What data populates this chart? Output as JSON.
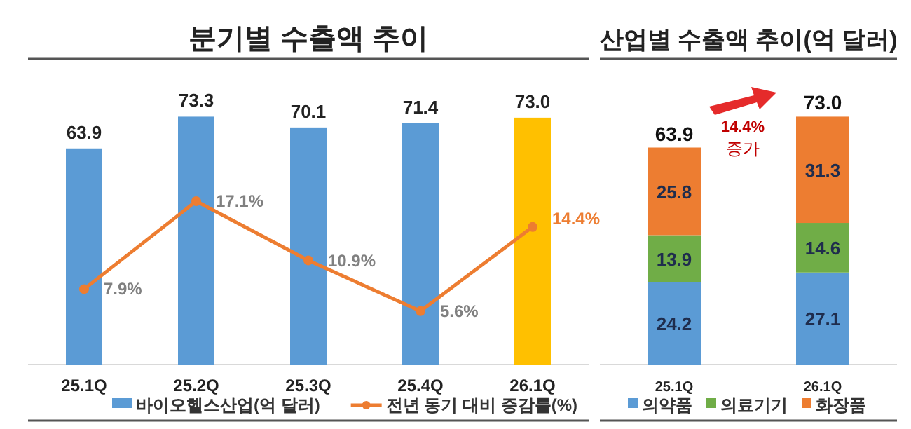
{
  "chart_data": [
    {
      "type": "bar",
      "title": "분기별 수출액 추이",
      "categories": [
        "25.1Q",
        "25.2Q",
        "25.3Q",
        "25.4Q",
        "26.1Q"
      ],
      "series": [
        {
          "name": "바이오헬스산업(억 달러)",
          "color": "#5b9bd5",
          "colors": [
            "#5b9bd5",
            "#5b9bd5",
            "#5b9bd5",
            "#5b9bd5",
            "#ffc000"
          ],
          "values": [
            63.9,
            73.3,
            70.1,
            71.4,
            73.0
          ],
          "value_labels": [
            "63.9",
            "73.3",
            "70.1",
            "71.4",
            "73.0"
          ]
        },
        {
          "name": "전년 동기 대비 증감률(%)",
          "type": "line",
          "axis": "y2",
          "color": "#ed7d31",
          "values": [
            7.9,
            17.1,
            10.9,
            5.6,
            14.4
          ],
          "value_labels": [
            "7.9%",
            "17.1%",
            "10.9%",
            "5.6%",
            "14.4%"
          ]
        }
      ],
      "data_labels": true,
      "marker": "circle",
      "line_style": "solid",
      "legend": "bottom",
      "grid": false
    },
    {
      "type": "bar",
      "stacked": true,
      "title": "산업별 수출액 추이(억 달러)",
      "categories": [
        "25.1Q",
        "26.1Q"
      ],
      "series": [
        {
          "name": "의약품",
          "color": "#5b9bd5",
          "values": [
            24.2,
            27.1
          ]
        },
        {
          "name": "의료기기",
          "color": "#70ad47",
          "values": [
            13.9,
            14.6
          ]
        },
        {
          "name": "화장품",
          "color": "#ed7d31",
          "values": [
            25.8,
            31.3
          ]
        }
      ],
      "totals": [
        "63.9",
        "73.0"
      ],
      "data_labels": true,
      "annotations": [
        "14.4%",
        "증가"
      ],
      "legend": "bottom",
      "grid": false
    }
  ]
}
